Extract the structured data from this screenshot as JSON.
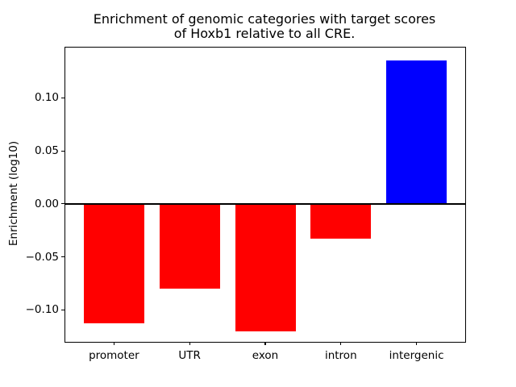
{
  "figure": {
    "title_lines": [
      "Enrichment of genomic categories with target scores",
      "of Hoxb1 relative to all CRE."
    ]
  },
  "chart_data": {
    "type": "bar",
    "title": "Enrichment of genomic categories with target scores\nof Hoxb1 relative to all CRE.",
    "xlabel": "",
    "ylabel": "Enrichment (log10)",
    "categories": [
      "promoter",
      "UTR",
      "exon",
      "intron",
      "intergenic"
    ],
    "values": [
      -0.113,
      -0.08,
      -0.12,
      -0.033,
      0.135
    ],
    "bar_colors": [
      "#ff0000",
      "#ff0000",
      "#ff0000",
      "#ff0000",
      "#0000ff"
    ],
    "ylim": [
      -0.1302,
      0.1474
    ],
    "yticks": [
      0.1,
      0.05,
      0.0,
      -0.05,
      -0.1
    ],
    "ytick_labels": [
      "0.10",
      "0.05",
      "0.00",
      "−0.05",
      "−0.10"
    ],
    "grid": false,
    "legend": "none",
    "zero_line": true,
    "axis_color": "#000000",
    "background_color": "#ffffff"
  }
}
